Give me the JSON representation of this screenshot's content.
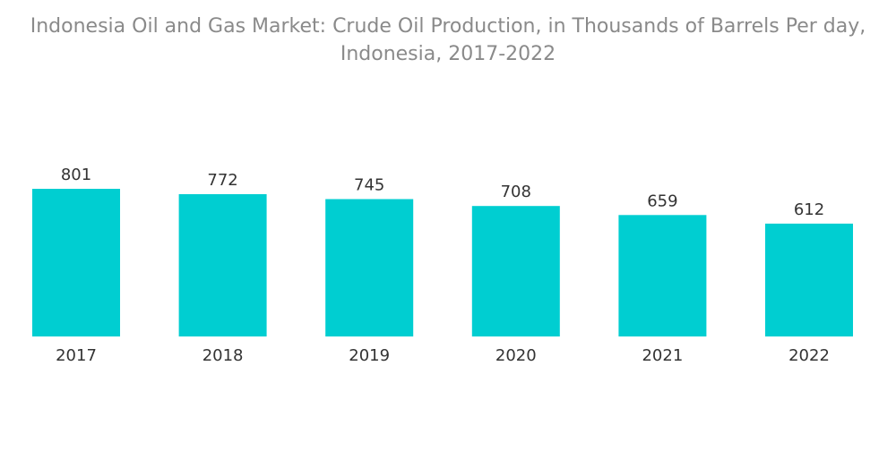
{
  "title_line1": "Indonesia Oil and Gas Market: Crude Oil Production, in Thousands of Barrels Per day,",
  "title_line2": "Indonesia, 2017-2022",
  "colors": {
    "bar": "#00ced1",
    "title": "#8a8a8a",
    "labels": "#333333"
  },
  "chart_data": {
    "type": "bar",
    "title": "Indonesia Oil and Gas Market: Crude Oil Production, in Thousands of Barrels Per day, Indonesia, 2017-2022",
    "xlabel": "",
    "ylabel": "",
    "categories": [
      "2017",
      "2018",
      "2019",
      "2020",
      "2021",
      "2022"
    ],
    "values": [
      801,
      772,
      745,
      708,
      659,
      612
    ],
    "grid": false,
    "legend": "none"
  }
}
